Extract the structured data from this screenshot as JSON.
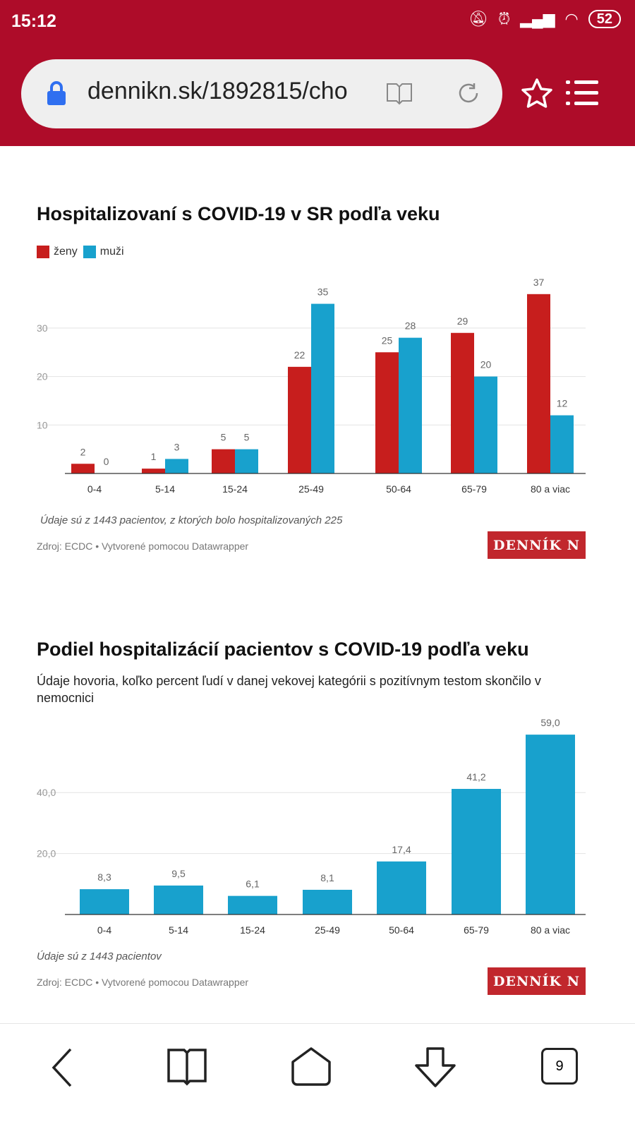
{
  "status_bar": {
    "time": "15:12",
    "battery": "52"
  },
  "browser": {
    "url": "dennikn.sk/1892815/cho",
    "tab_count": "9"
  },
  "colors": {
    "brand": "#ae0c29",
    "zeny": "#c71e1d",
    "muzi": "#18a1cd"
  },
  "icons": [
    "lock-icon",
    "reader-icon",
    "reload-icon",
    "star-icon",
    "menu-icon",
    "back-icon",
    "bookmarks-icon",
    "home-icon",
    "download-icon",
    "tabs-icon",
    "mute-icon",
    "alarm-icon",
    "signal-icon",
    "wifi-icon"
  ],
  "chart1": {
    "title": "Hospitalizovaní s COVID-19 v SR podľa veku",
    "note": "Údaje sú z 1443 pacientov, z ktorých bolo hospitalizovaných 225",
    "source": "Zdroj: ECDC • Vytvorené pomocou Datawrapper",
    "logo": "DENNÍK N"
  },
  "chart2": {
    "title": "Podiel hospitalizácií pacientov s COVID-19 podľa veku",
    "subtitle": "Údaje hovoria, koľko percent ľudí v danej vekovej kategórii s pozitívnym testom skončilo v nemocnici",
    "note": "Údaje sú z 1443 pacientov",
    "source": "Zdroj: ECDC • Vytvorené pomocou Datawrapper",
    "logo": "DENNÍK N"
  },
  "chart_data": [
    {
      "type": "bar",
      "title": "Hospitalizovaní s COVID-19 v SR podľa veku",
      "categories": [
        "0-4",
        "5-14",
        "15-24",
        "25-49",
        "50-64",
        "65-79",
        "80 a viac"
      ],
      "series": [
        {
          "name": "ženy",
          "color": "#c71e1d",
          "values": [
            2,
            1,
            5,
            22,
            25,
            29,
            37
          ]
        },
        {
          "name": "muži",
          "color": "#18a1cd",
          "values": [
            0,
            3,
            5,
            35,
            28,
            20,
            12
          ]
        }
      ],
      "yticks": [
        "10",
        "20",
        "30"
      ],
      "ylim": [
        0,
        40
      ],
      "grid": true,
      "legend": "top-left"
    },
    {
      "type": "bar",
      "title": "Podiel hospitalizácií pacientov s COVID-19 podľa veku",
      "categories": [
        "0-4",
        "5-14",
        "15-24",
        "25-49",
        "50-64",
        "65-79",
        "80 a viac"
      ],
      "series": [
        {
          "color": "#18a1cd",
          "values": [
            8.3,
            9.5,
            6.1,
            8.1,
            17.4,
            41.2,
            59.0
          ],
          "labels": [
            "8,3",
            "9,5",
            "6,1",
            "8,1",
            "17,4",
            "41,2",
            "59,0"
          ]
        }
      ],
      "yticks": [
        "20,0",
        "40,0"
      ],
      "ylim": [
        0,
        60
      ],
      "grid": true
    }
  ]
}
